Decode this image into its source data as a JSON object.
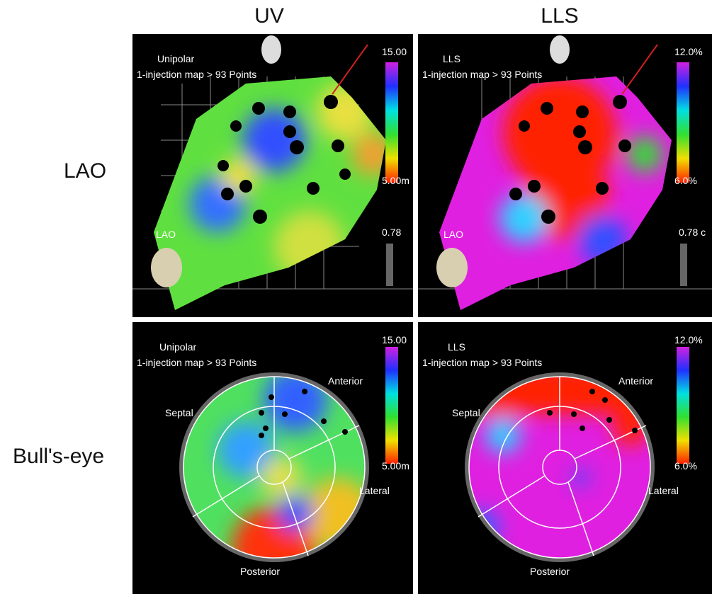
{
  "columns": [
    "UV",
    "LLS"
  ],
  "rows": [
    "LAO",
    "Bull's-eye"
  ],
  "panels": [
    {
      "mode": "Unipolar",
      "points": "1-injection map > 93 Points",
      "scale_max": "15.00",
      "scale_min": "5.00m",
      "threshold": "0.78",
      "view": "LAO"
    },
    {
      "mode": "LLS",
      "points": "1-injection map > 93 Points",
      "scale_max": "12.0%",
      "scale_min": "6.0%",
      "threshold": "0.78 c",
      "view": "LAO"
    },
    {
      "mode": "Unipolar",
      "points": "1-injection map > 93 Points",
      "scale_max": "15.00",
      "scale_min": "5.00m",
      "anterior": "Anterior",
      "septal": "Septal",
      "lateral": "Lateral",
      "posterior": "Posterior"
    },
    {
      "mode": "LLS",
      "points": "1-injection map > 93 Points",
      "scale_max": "12.0%",
      "scale_min": "6.0%",
      "anterior": "Anterior",
      "septal": "Septal",
      "lateral": "Lateral",
      "posterior": "Posterior"
    }
  ]
}
